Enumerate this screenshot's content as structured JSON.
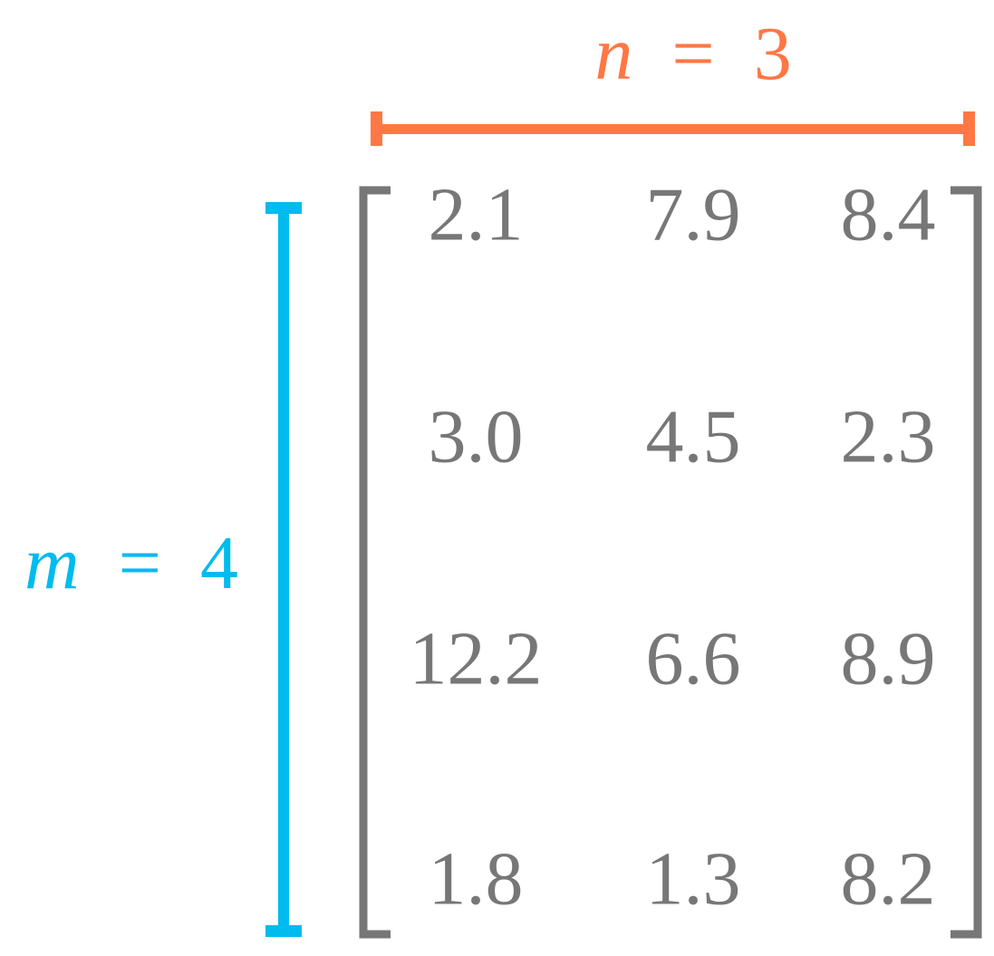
{
  "column_label": {
    "symbol": "n",
    "relation": "=",
    "value": "3"
  },
  "row_label": {
    "symbol": "m",
    "relation": "=",
    "value": "4"
  },
  "matrix": {
    "rows": [
      [
        "2.1",
        "7.9",
        "8.4"
      ],
      [
        "3.0",
        "4.5",
        "2.3"
      ],
      [
        "12.2",
        "6.6",
        "8.9"
      ],
      [
        "1.8",
        "1.3",
        "8.2"
      ]
    ]
  }
}
